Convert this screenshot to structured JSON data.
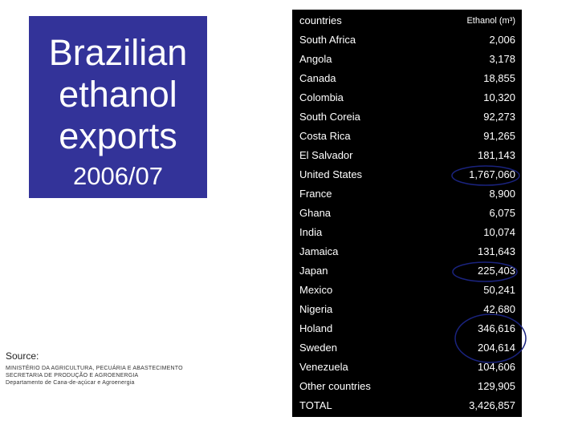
{
  "title": {
    "line1": "Brazilian",
    "line2": "ethanol",
    "line3": "exports",
    "year": "2006/07",
    "bg_color": "#333399"
  },
  "source": {
    "label": "Source:",
    "org_lines": [
      "MINISTÉRIO DA AGRICULTURA, PECUÁRIA E ABASTECIMENTO",
      "SECRETARIA DE PRODUÇÃO E AGROENERGIA",
      "Departamento de Cana-de-açúcar e Agroenergia"
    ]
  },
  "table": {
    "header": {
      "country": "countries",
      "value": "Ethanol (m³)"
    },
    "rows": [
      {
        "country": "South Africa",
        "value": "2,006"
      },
      {
        "country": "Angola",
        "value": "3,178"
      },
      {
        "country": "Canada",
        "value": "18,855"
      },
      {
        "country": "Colombia",
        "value": "10,320"
      },
      {
        "country": "South Coreia",
        "value": "92,273"
      },
      {
        "country": "Costa Rica",
        "value": "91,265"
      },
      {
        "country": "El Salvador",
        "value": "181,143"
      },
      {
        "country": "United States",
        "value": "1,767,060"
      },
      {
        "country": "France",
        "value": "8,900"
      },
      {
        "country": "Ghana",
        "value": "6,075"
      },
      {
        "country": "India",
        "value": "10,074"
      },
      {
        "country": "Jamaica",
        "value": "131,643"
      },
      {
        "country": "Japan",
        "value": "225,403"
      },
      {
        "country": "Mexico",
        "value": "50,241"
      },
      {
        "country": "Nigeria",
        "value": "42,680"
      },
      {
        "country": "Holand",
        "value": "346,616"
      },
      {
        "country": "Sweden",
        "value": "204,614"
      },
      {
        "country": "Venezuela",
        "value": "104,606"
      },
      {
        "country": "Other countries",
        "value": "129,905"
      },
      {
        "country": "TOTAL",
        "value": "3,426,857"
      }
    ],
    "highlighted_rows": [
      "United States",
      "Japan",
      "Holand",
      "Sweden"
    ]
  }
}
